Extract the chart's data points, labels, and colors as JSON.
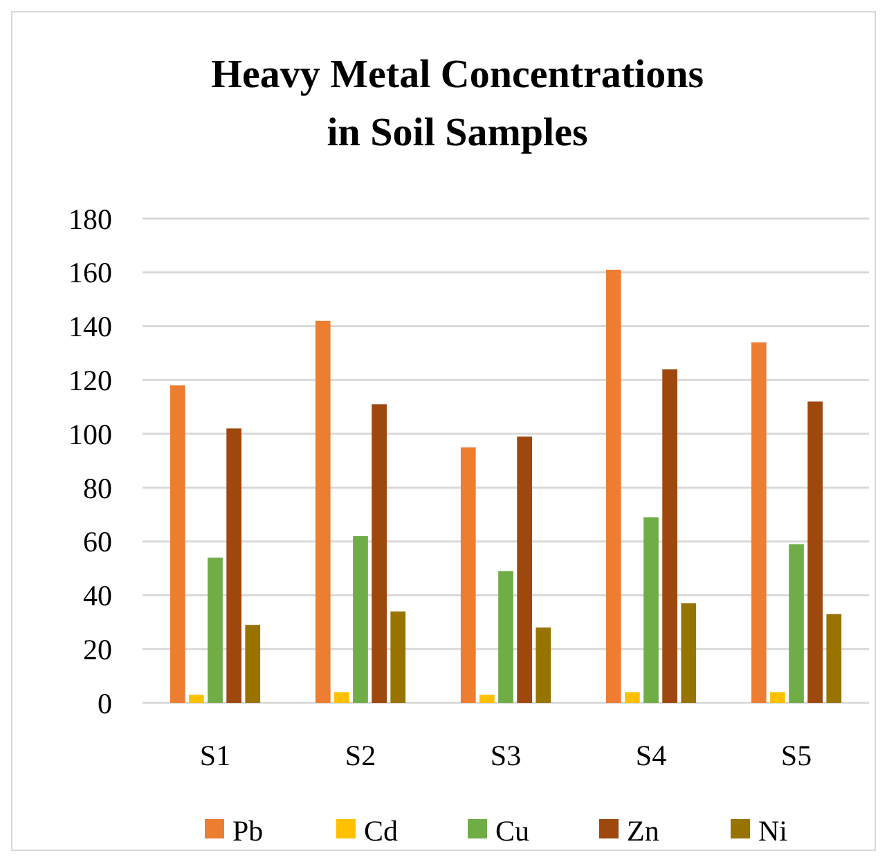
{
  "chart_data": {
    "type": "bar",
    "title": "Heavy Metal Concentrations in Soil Samples",
    "categories": [
      "S1",
      "S2",
      "S3",
      "S4",
      "S5"
    ],
    "series": [
      {
        "name": "Pb",
        "color": "#ed7d31",
        "values": [
          118,
          142,
          95,
          161,
          134
        ]
      },
      {
        "name": "Cd",
        "color": "#ffc000",
        "values": [
          3,
          4,
          3,
          4,
          4
        ]
      },
      {
        "name": "Cu",
        "color": "#70ad47",
        "values": [
          54,
          62,
          49,
          69,
          59
        ]
      },
      {
        "name": "Zn",
        "color": "#9e480e",
        "values": [
          102,
          111,
          99,
          124,
          112
        ]
      },
      {
        "name": "Ni",
        "color": "#997300",
        "values": [
          29,
          34,
          28,
          37,
          33
        ]
      }
    ],
    "ylim": [
      0,
      180
    ],
    "yticks": [
      0,
      20,
      40,
      60,
      80,
      100,
      120,
      140,
      160,
      180
    ],
    "grid": "y",
    "legend": "bottom"
  }
}
